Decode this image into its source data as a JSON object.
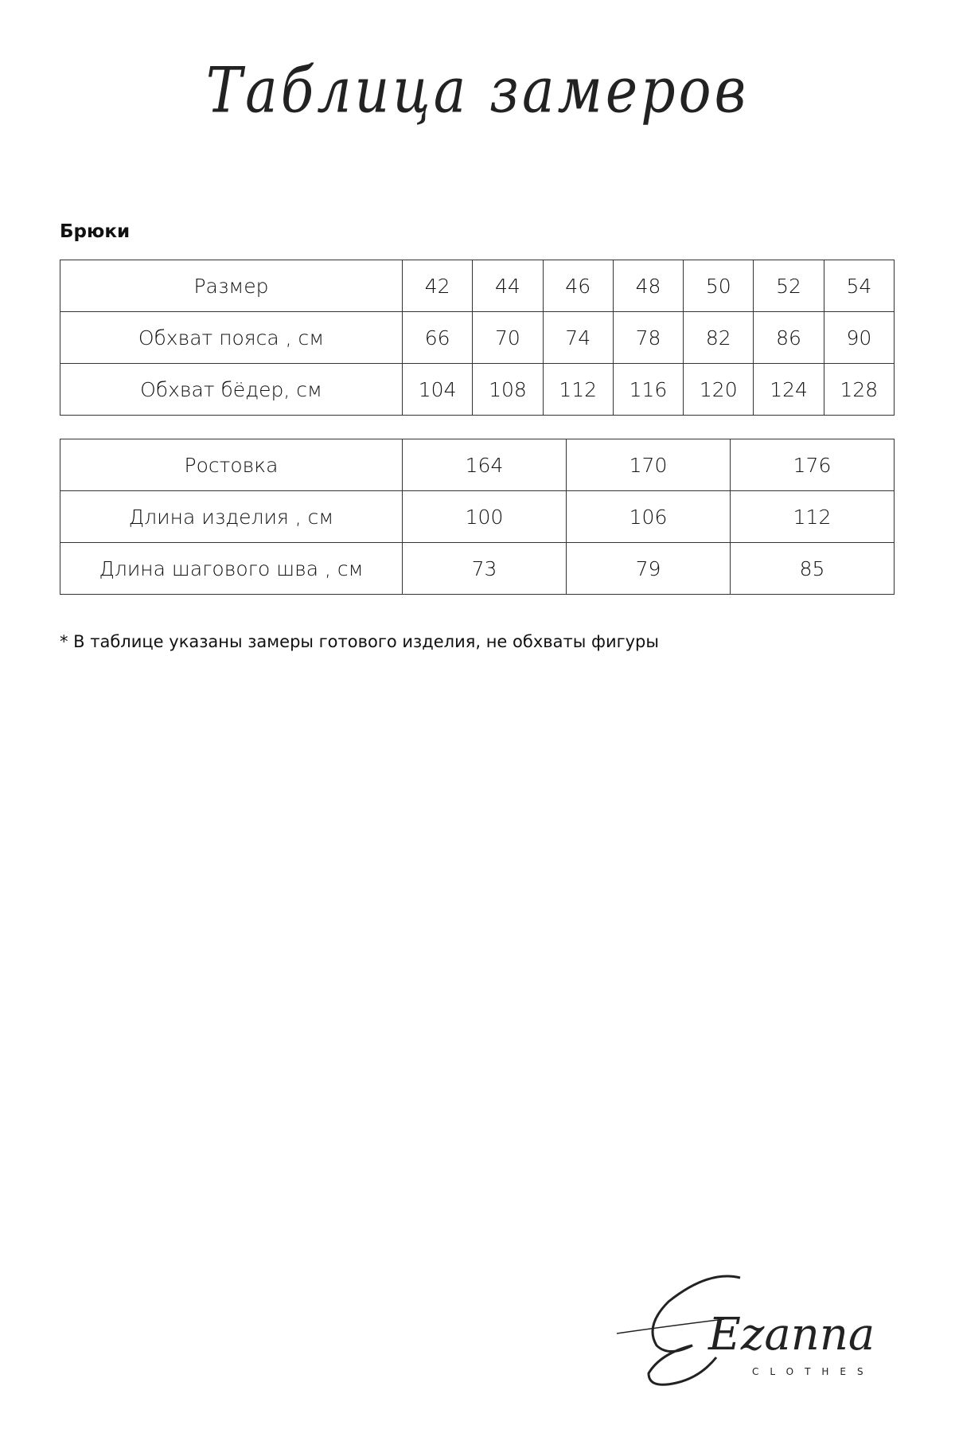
{
  "title": "Таблица замеров",
  "section": "Брюки",
  "table_sizes": {
    "rows": [
      {
        "label": "Размер",
        "values": [
          "42",
          "44",
          "46",
          "48",
          "50",
          "52",
          "54"
        ]
      },
      {
        "label": "Обхват пояса , см",
        "values": [
          "66",
          "70",
          "74",
          "78",
          "82",
          "86",
          "90"
        ]
      },
      {
        "label": "Обхват бёдер, см",
        "values": [
          "104",
          "108",
          "112",
          "116",
          "120",
          "124",
          "128"
        ]
      }
    ]
  },
  "table_heights": {
    "rows": [
      {
        "label": "Ростовка",
        "values": [
          "164",
          "170",
          "176"
        ]
      },
      {
        "label": "Длина изделия , см",
        "values": [
          "100",
          "106",
          "112"
        ]
      },
      {
        "label": "Длина шагового шва , см",
        "values": [
          "73",
          "79",
          "85"
        ]
      }
    ]
  },
  "note": "* В таблице указаны замеры готового изделия, не обхваты фигуры",
  "logo": {
    "script": "Ezanna",
    "sub": "CLOTHES"
  }
}
